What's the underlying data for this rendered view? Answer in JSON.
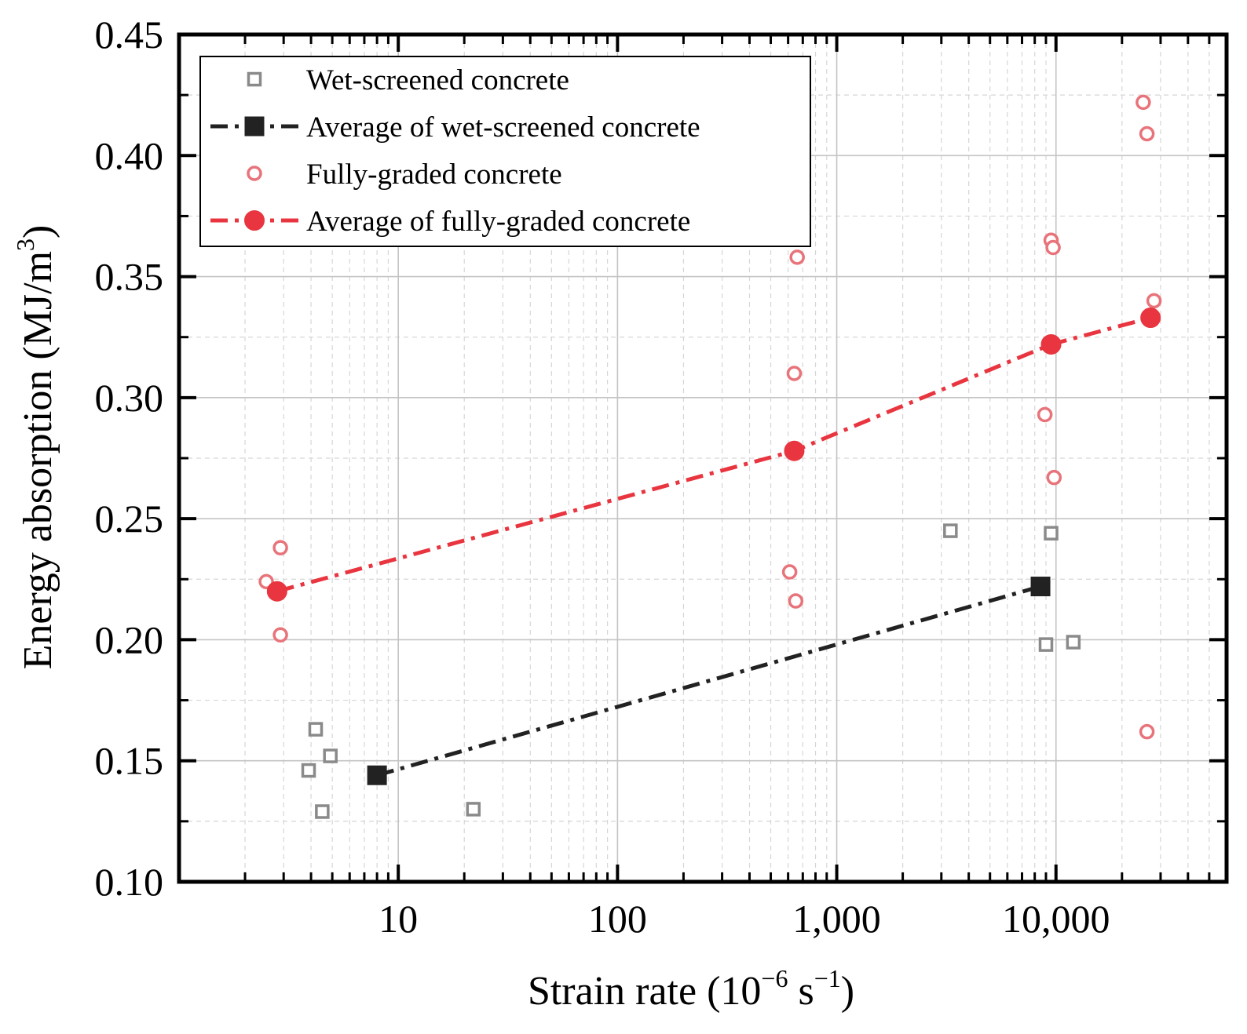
{
  "chart_data": {
    "type": "scatter",
    "title": "",
    "xlabel": {
      "base": "Strain rate (10",
      "sup1": "−6",
      "mid": " s",
      "sup2": "−1",
      "end": ")"
    },
    "ylabel": {
      "base": "Energy absorption (MJ/m",
      "sup": "3",
      "end": ")"
    },
    "x_scale": "log",
    "xlim": [
      1,
      60000
    ],
    "ylim": [
      0.1,
      0.45
    ],
    "x_ticks": [
      {
        "value": 10,
        "label": "10"
      },
      {
        "value": 100,
        "label": "100"
      },
      {
        "value": 1000,
        "label": "1,000"
      },
      {
        "value": 10000,
        "label": "10,000"
      }
    ],
    "y_ticks": [
      {
        "value": 0.1,
        "label": "0.10"
      },
      {
        "value": 0.15,
        "label": "0.15"
      },
      {
        "value": 0.2,
        "label": "0.20"
      },
      {
        "value": 0.25,
        "label": "0.25"
      },
      {
        "value": 0.3,
        "label": "0.30"
      },
      {
        "value": 0.35,
        "label": "0.35"
      },
      {
        "value": 0.4,
        "label": "0.40"
      },
      {
        "value": 0.45,
        "label": "0.45"
      }
    ],
    "grid": true,
    "legend_position": "top-left",
    "series": [
      {
        "name": "Wet-screened concrete",
        "kind": "markers",
        "marker": "open-square",
        "color": "#8a8a8a",
        "points": [
          [
            4.2,
            0.163
          ],
          [
            4.9,
            0.152
          ],
          [
            3.9,
            0.146
          ],
          [
            4.5,
            0.129
          ],
          [
            22,
            0.13
          ],
          [
            3300,
            0.245
          ],
          [
            9500,
            0.244
          ],
          [
            9000,
            0.198
          ],
          [
            12000,
            0.199
          ]
        ]
      },
      {
        "name": "Average of wet-screened concrete",
        "kind": "line-markers",
        "marker": "filled-square",
        "color": "#222222",
        "points": [
          [
            8,
            0.144
          ],
          [
            8500,
            0.222
          ]
        ]
      },
      {
        "name": "Fully-graded concrete",
        "kind": "markers",
        "marker": "open-circle",
        "color": "#e8737a",
        "points": [
          [
            2.9,
            0.238
          ],
          [
            2.5,
            0.224
          ],
          [
            2.9,
            0.202
          ],
          [
            660,
            0.358
          ],
          [
            640,
            0.31
          ],
          [
            610,
            0.228
          ],
          [
            650,
            0.216
          ],
          [
            9500,
            0.365
          ],
          [
            9700,
            0.362
          ],
          [
            8900,
            0.293
          ],
          [
            9800,
            0.267
          ],
          [
            25000,
            0.422
          ],
          [
            26000,
            0.409
          ],
          [
            28000,
            0.34
          ],
          [
            26000,
            0.162
          ]
        ]
      },
      {
        "name": "Average of fully-graded concrete",
        "kind": "line-markers",
        "marker": "filled-circle",
        "color": "#e8353f",
        "points": [
          [
            2.8,
            0.22
          ],
          [
            640,
            0.278
          ],
          [
            9500,
            0.322
          ],
          [
            27000,
            0.333
          ]
        ]
      }
    ]
  }
}
